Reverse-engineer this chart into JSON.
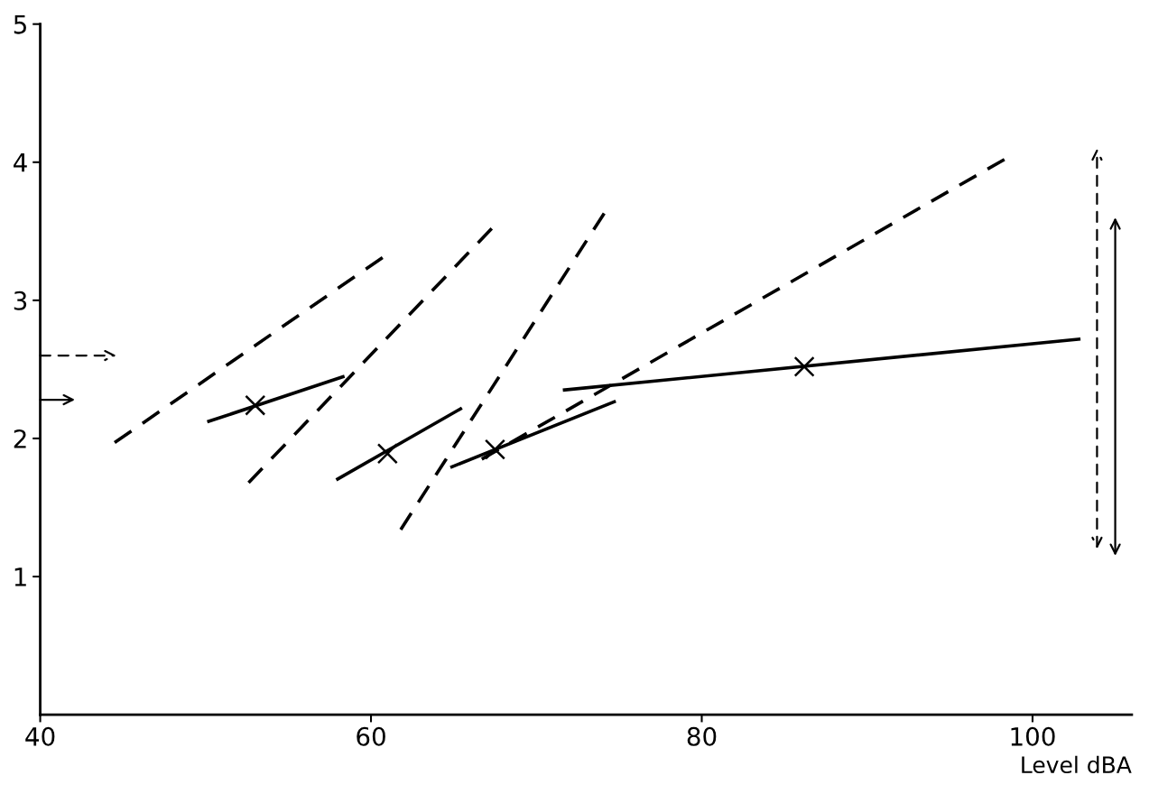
{
  "chart_data": {
    "type": "line",
    "xlabel": "Level dBA",
    "xlim": [
      40,
      106
    ],
    "ylim": [
      0,
      5
    ],
    "xticks": [
      40,
      60,
      80,
      100
    ],
    "yticks": [
      1,
      2,
      3,
      4,
      5
    ],
    "grid": false,
    "legend": false,
    "series": [
      {
        "line_style": "dashed",
        "color": "#000000",
        "x": [
          44.5,
          60.7
        ],
        "values": [
          1.97,
          3.31
        ]
      },
      {
        "line_style": "dashed",
        "color": "#000000",
        "x": [
          52.6,
          67.3
        ],
        "values": [
          1.68,
          3.52
        ]
      },
      {
        "line_style": "dashed",
        "color": "#000000",
        "x": [
          61.8,
          74.1
        ],
        "values": [
          1.34,
          3.63
        ]
      },
      {
        "line_style": "dashed",
        "color": "#000000",
        "x": [
          66.7,
          98.3
        ],
        "values": [
          1.85,
          4.02
        ]
      },
      {
        "line_style": "solid",
        "color": "#000000",
        "x": [
          50.1,
          58.4
        ],
        "values": [
          2.12,
          2.45
        ]
      },
      {
        "line_style": "solid",
        "color": "#000000",
        "x": [
          57.9,
          65.5
        ],
        "values": [
          1.7,
          2.22
        ]
      },
      {
        "line_style": "solid",
        "color": "#000000",
        "x": [
          64.8,
          74.8
        ],
        "values": [
          1.79,
          2.27
        ]
      },
      {
        "line_style": "solid",
        "color": "#000000",
        "x": [
          71.6,
          102.9
        ],
        "values": [
          2.35,
          2.72
        ]
      },
      {
        "type": "scatter",
        "marker": "cross",
        "color": "#000000",
        "x": [
          53.0,
          61.0,
          67.5,
          86.2
        ],
        "values": [
          2.24,
          1.89,
          1.92,
          2.52
        ]
      },
      {
        "line_style": "dashed",
        "color": "#000000",
        "x": [
          40,
          44.6
        ],
        "values": [
          2.6,
          2.6
        ]
      },
      {
        "line_style": "solid",
        "color": "#000000",
        "x": [
          40,
          42.1
        ],
        "values": [
          2.28,
          2.28
        ]
      },
      {
        "line_style": "dashed",
        "color": "#000000",
        "x": [
          103.9,
          103.9
        ],
        "values": [
          1.2,
          4.1
        ]
      },
      {
        "line_style": "solid",
        "color": "#000000",
        "x": [
          105.0,
          105.0
        ],
        "values": [
          1.15,
          3.6
        ]
      }
    ]
  }
}
